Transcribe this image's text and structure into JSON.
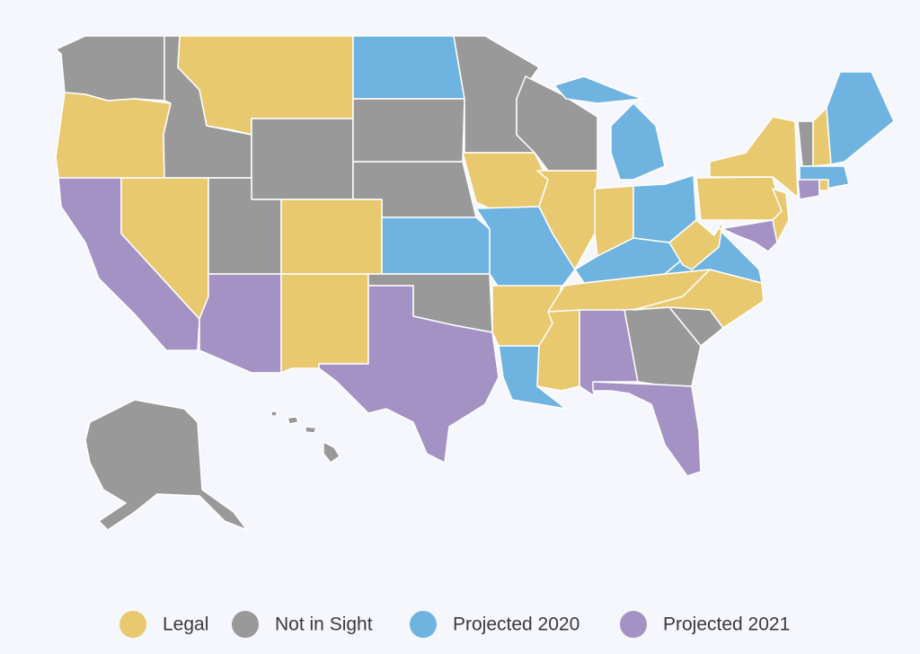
{
  "legend": {
    "items": [
      {
        "label": "Legal",
        "color": "#e8c96f"
      },
      {
        "label": "Not in Sight",
        "color": "#999999"
      },
      {
        "label": "Projected 2020",
        "color": "#6fb3e0"
      },
      {
        "label": "Projected 2021",
        "color": "#a592c4"
      }
    ]
  }
}
